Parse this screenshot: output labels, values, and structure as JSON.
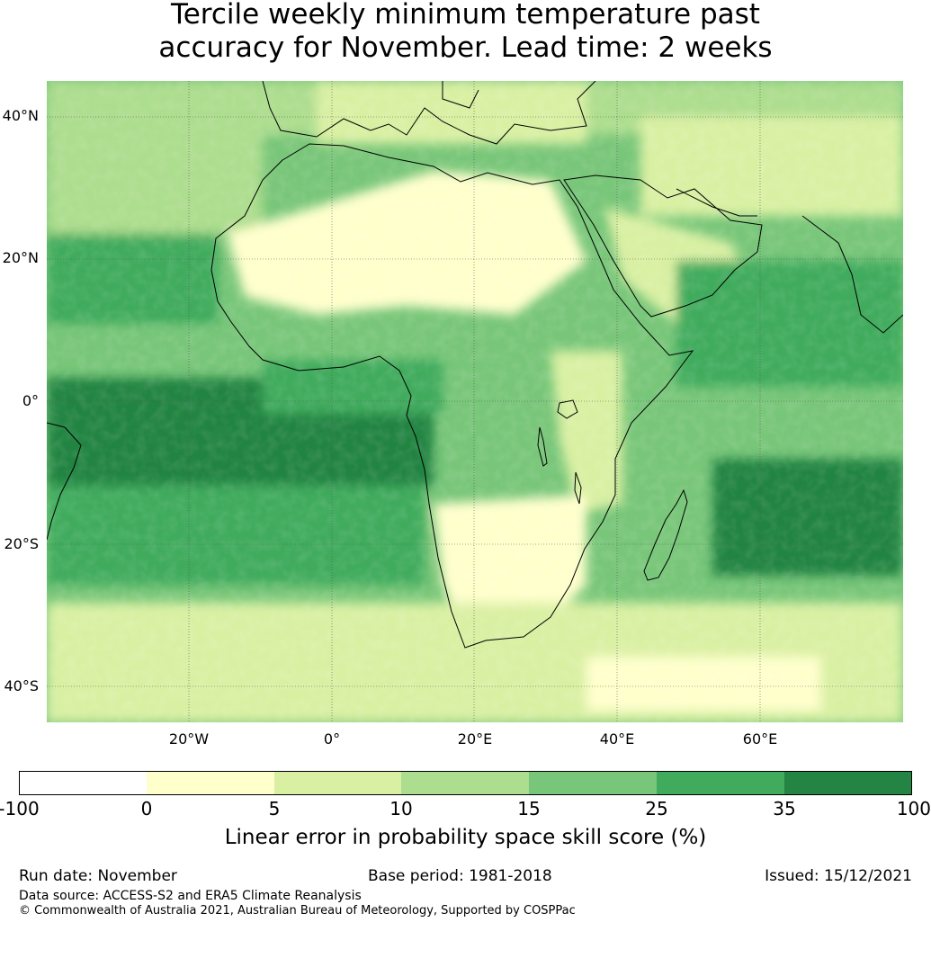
{
  "title_line1": "Tercile weekly minimum temperature past",
  "title_line2": "accuracy for November. Lead time: 2 weeks",
  "map": {
    "lat_labels": [
      "40°N",
      "20°N",
      "0°",
      "20°S",
      "40°S"
    ],
    "lon_labels": [
      "20°W",
      "0°",
      "20°E",
      "40°E",
      "60°E"
    ],
    "extent": {
      "lon": [
        -40,
        80
      ],
      "lat": [
        -45,
        45
      ]
    }
  },
  "colorbar": {
    "ticks": [
      "-100",
      "0",
      "5",
      "10",
      "15",
      "25",
      "35",
      "100"
    ],
    "colors": [
      "#ffffff",
      "#ffffcc",
      "#d9f0a3",
      "#addd8e",
      "#78c679",
      "#41ab5d",
      "#238443"
    ],
    "label": "Linear error in probability space skill score (%)"
  },
  "footer": {
    "run_date": "Run date: November",
    "base_period": "Base period: 1981-2018",
    "issued": "Issued: 15/12/2021",
    "data_source": "Data source: ACCESS-S2 and ERA5 Climate Reanalysis",
    "copyright": "© Commonwealth of Australia 2021, Australian Bureau of Meteorology, Supported by COSPPac"
  }
}
